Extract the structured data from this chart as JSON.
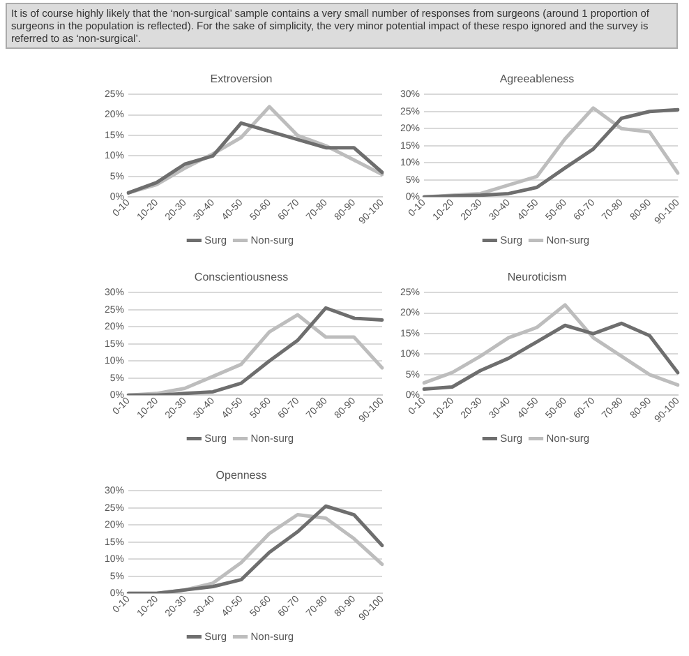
{
  "chart_data": [
    {
      "type": "line",
      "title": "Extroversion",
      "annotations": [
        "It is of course highly likely that the ‘non-surgical’ sample contains a very small number of responses from surgeons (around 1 proportion of surgeons in the population is reflected). For the sake of simplicity, the very minor potential impact of these respo ignored and the survey is referred to as ‘non-surgical’."
      ],
      "categories": [
        "0-10",
        "10-20",
        "20-30",
        "30-40",
        "40-50",
        "50-60",
        "60-70",
        "70-80",
        "80-90",
        "90-100"
      ],
      "series": [
        {
          "name": "Surg",
          "color": "#6e6e6e",
          "values": [
            1,
            3.5,
            8,
            10,
            18,
            16,
            14,
            12,
            12,
            6
          ]
        },
        {
          "name": "Non-surg",
          "color": "#bdbdbd",
          "values": [
            1,
            3,
            7,
            10.5,
            14.5,
            22,
            15,
            12.5,
            9,
            5.5
          ]
        }
      ],
      "ylim": [
        0,
        25
      ],
      "yticks": [
        {
          "value": 0,
          "label": "0%"
        },
        {
          "value": 5,
          "label": "5%"
        },
        {
          "value": 10,
          "label": "10%"
        },
        {
          "value": 15,
          "label": "15%"
        },
        {
          "value": 20,
          "label": "20%"
        },
        {
          "value": 25,
          "label": "25%"
        }
      ],
      "grid": "y",
      "legend": "bottom",
      "marker": "none"
    },
    {
      "type": "line",
      "title": "Agreeableness",
      "categories": [
        "0-10",
        "10-20",
        "20-30",
        "30-40",
        "40-50",
        "50-60",
        "60-70",
        "70-80",
        "80-90",
        "90-100"
      ],
      "series": [
        {
          "name": "Surg",
          "color": "#6e6e6e",
          "values": [
            0,
            0.3,
            0.5,
            1,
            2.8,
            8.5,
            14,
            23,
            25,
            25.5
          ]
        },
        {
          "name": "Non-surg",
          "color": "#bdbdbd",
          "values": [
            0,
            0.5,
            1,
            3.5,
            6,
            17,
            26,
            20,
            19,
            7
          ]
        }
      ],
      "ylim": [
        0,
        30
      ],
      "yticks": [
        {
          "value": 0,
          "label": "0%"
        },
        {
          "value": 5,
          "label": "5%"
        },
        {
          "value": 10,
          "label": "10%"
        },
        {
          "value": 15,
          "label": "15%"
        },
        {
          "value": 20,
          "label": "20%"
        },
        {
          "value": 25,
          "label": "25%"
        },
        {
          "value": 30,
          "label": "30%"
        }
      ],
      "grid": "y",
      "legend": "bottom",
      "marker": "none"
    },
    {
      "type": "line",
      "title": "Conscientiousness",
      "categories": [
        "0-10",
        "10-20",
        "20-30",
        "30-40",
        "40-50",
        "50-60",
        "60-70",
        "70-80",
        "80-90",
        "90-100"
      ],
      "series": [
        {
          "name": "Surg",
          "color": "#6e6e6e",
          "values": [
            0,
            0,
            0.5,
            1,
            3.5,
            10,
            16,
            25.5,
            22.5,
            22
          ]
        },
        {
          "name": "Non-surg",
          "color": "#bdbdbd",
          "values": [
            0,
            0.5,
            2,
            5.5,
            9,
            18.5,
            23.5,
            17,
            17,
            8
          ]
        }
      ],
      "ylim": [
        0,
        30
      ],
      "yticks": [
        {
          "value": 0,
          "label": "0%"
        },
        {
          "value": 5,
          "label": "5%"
        },
        {
          "value": 10,
          "label": "10%"
        },
        {
          "value": 15,
          "label": "15%"
        },
        {
          "value": 20,
          "label": "20%"
        },
        {
          "value": 25,
          "label": "25%"
        },
        {
          "value": 30,
          "label": "30%"
        }
      ],
      "grid": "y",
      "legend": "bottom",
      "marker": "none"
    },
    {
      "type": "line",
      "title": "Neuroticism",
      "categories": [
        "0-10",
        "10-20",
        "20-30",
        "30-40",
        "40-50",
        "50-60",
        "60-70",
        "70-80",
        "80-90",
        "90-100"
      ],
      "series": [
        {
          "name": "Surg",
          "color": "#6e6e6e",
          "values": [
            1.5,
            2,
            6,
            9,
            13,
            17,
            15,
            17.5,
            14.5,
            5.5
          ]
        },
        {
          "name": "Non-surg",
          "color": "#bdbdbd",
          "values": [
            3,
            5.5,
            9.5,
            14,
            16.5,
            22,
            14,
            9.5,
            5,
            2.5
          ]
        }
      ],
      "ylim": [
        0,
        25
      ],
      "yticks": [
        {
          "value": 0,
          "label": "0%"
        },
        {
          "value": 5,
          "label": "5%"
        },
        {
          "value": 10,
          "label": "10%"
        },
        {
          "value": 15,
          "label": "15%"
        },
        {
          "value": 20,
          "label": "20%"
        },
        {
          "value": 25,
          "label": "25%"
        }
      ],
      "grid": "y",
      "legend": "bottom",
      "marker": "none"
    },
    {
      "type": "line",
      "title": "Openness",
      "categories": [
        "0-10",
        "10-20",
        "20-30",
        "30-40",
        "40-50",
        "50-60",
        "60-70",
        "70-80",
        "80-90",
        "90-100"
      ],
      "series": [
        {
          "name": "Surg",
          "color": "#6e6e6e",
          "values": [
            0,
            0,
            1,
            2,
            4,
            12,
            18,
            25.5,
            23,
            14
          ]
        },
        {
          "name": "Non-surg",
          "color": "#bdbdbd",
          "values": [
            0,
            0,
            1,
            3,
            9,
            17.5,
            23,
            22,
            16,
            8.5
          ]
        }
      ],
      "ylim": [
        0,
        30
      ],
      "yticks": [
        {
          "value": 0,
          "label": "0%"
        },
        {
          "value": 5,
          "label": "5%"
        },
        {
          "value": 10,
          "label": "10%"
        },
        {
          "value": 15,
          "label": "15%"
        },
        {
          "value": 20,
          "label": "20%"
        },
        {
          "value": 25,
          "label": "25%"
        },
        {
          "value": 30,
          "label": "30%"
        }
      ],
      "grid": "y",
      "legend": "bottom",
      "marker": "none"
    }
  ]
}
